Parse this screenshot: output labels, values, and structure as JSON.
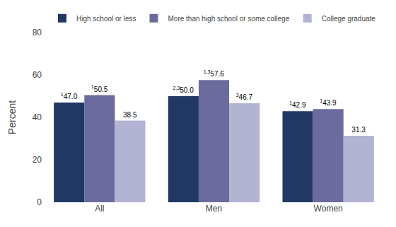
{
  "chart_data": {
    "type": "bar",
    "categories": [
      "All",
      "Men",
      "Women"
    ],
    "series": [
      {
        "name": "High school or less",
        "color": "#1f3864",
        "values": [
          47.0,
          50.0,
          42.9
        ],
        "value_labels": [
          "47.0",
          "50.0",
          "42.9"
        ],
        "superscripts": [
          "1",
          "2,3",
          "1"
        ]
      },
      {
        "name": "More than high school or some college",
        "color": "#6b6b9e",
        "values": [
          50.5,
          57.6,
          43.9
        ],
        "value_labels": [
          "50.5",
          "57.6",
          "43.9"
        ],
        "superscripts": [
          "1",
          "1,3",
          "1"
        ]
      },
      {
        "name": "College graduate",
        "color": "#b3b3d4",
        "values": [
          38.5,
          46.7,
          31.3
        ],
        "value_labels": [
          "38.5",
          "46.7",
          "31.3"
        ],
        "superscripts": [
          null,
          "3",
          null
        ]
      }
    ],
    "ylabel": "Percent",
    "ylim": [
      0,
      80
    ],
    "yticks": [
      0,
      20,
      40,
      60,
      80
    ],
    "grid": false,
    "legend": "top",
    "data_labels": true
  }
}
